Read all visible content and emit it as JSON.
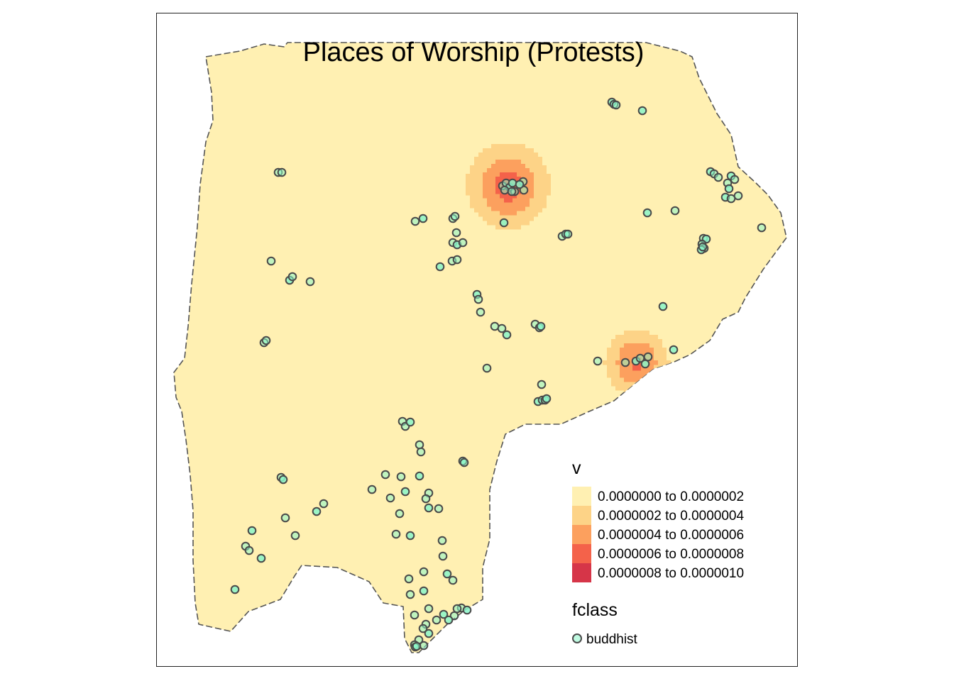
{
  "title": "Places of Worship (Protests)",
  "colors": {
    "region_fill": "#fff0b2",
    "region_edge": "#555555",
    "point_fill": "#8af5c8",
    "point_stroke": "#4a4a4a",
    "frame": "#222222"
  },
  "legend": {
    "density": {
      "title": "v",
      "classes": [
        {
          "label": "0.0000000 to 0.0000002",
          "color": "#fff0b2"
        },
        {
          "label": "0.0000002 to 0.0000004",
          "color": "#fdd387"
        },
        {
          "label": "0.0000004 to 0.0000006",
          "color": "#fca05e"
        },
        {
          "label": "0.0000006 to 0.0000008",
          "color": "#f4624a"
        },
        {
          "label": "0.0000008 to 0.0000010",
          "color": "#d63548"
        }
      ]
    },
    "fclass": {
      "title": "fclass",
      "items": [
        {
          "label": "buddhist"
        }
      ]
    }
  }
}
